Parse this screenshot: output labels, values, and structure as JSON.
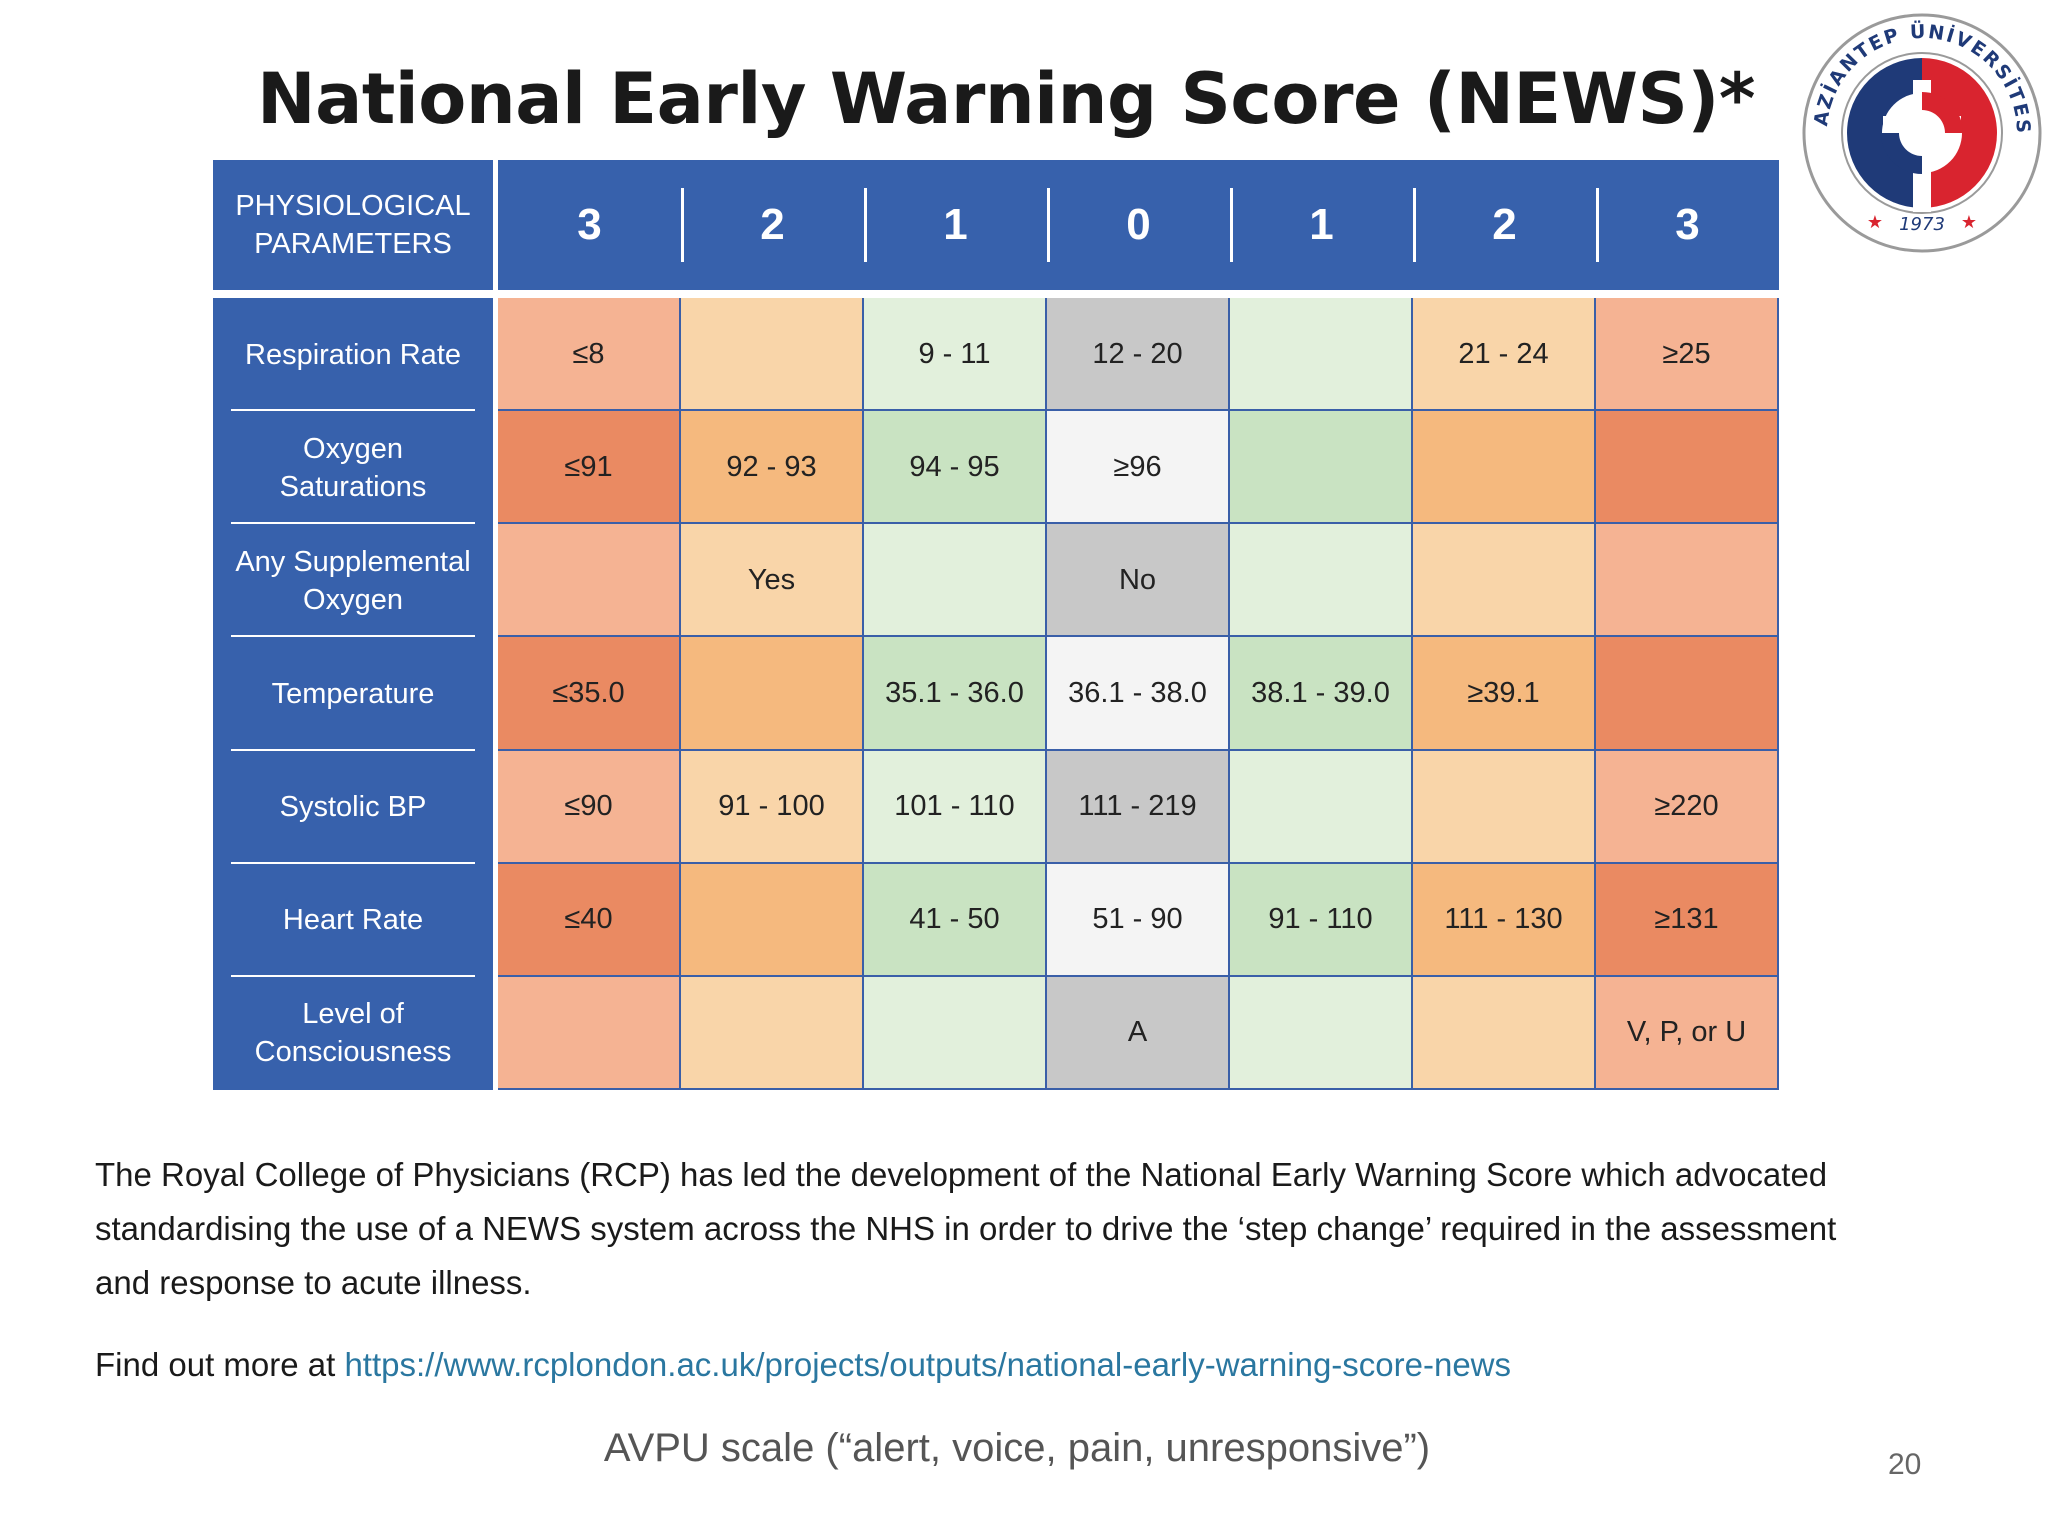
{
  "title": "National Early Warning Score (NEWS)*",
  "logo": {
    "text_top": "GAZİANTEP ÜNİVERSİTESİ",
    "year": "1973",
    "colors": {
      "red": "#d9242f",
      "blue": "#1f3a78"
    }
  },
  "table": {
    "header": {
      "param_label_line1": "PHYSIOLOGICAL",
      "param_label_line2": "PARAMETERS",
      "scores": [
        "3",
        "2",
        "1",
        "0",
        "1",
        "2",
        "3"
      ]
    },
    "rows": [
      {
        "param_line1": "Respiration Rate",
        "param_line2": "",
        "values": [
          "≤8",
          "",
          "9 - 11",
          "12 - 20",
          "",
          "21 - 24",
          "≥25"
        ]
      },
      {
        "param_line1": "Oxygen",
        "param_line2": "Saturations",
        "values": [
          "≤91",
          "92 - 93",
          "94 - 95",
          "≥96",
          "",
          "",
          ""
        ]
      },
      {
        "param_line1": "Any Supplemental",
        "param_line2": "Oxygen",
        "values": [
          "",
          "Yes",
          "",
          "No",
          "",
          "",
          ""
        ]
      },
      {
        "param_line1": "Temperature",
        "param_line2": "",
        "values": [
          "≤35.0",
          "",
          "35.1 - 36.0",
          "36.1 - 38.0",
          "38.1 - 39.0",
          "≥39.1",
          ""
        ]
      },
      {
        "param_line1": "Systolic BP",
        "param_line2": "",
        "values": [
          "≤90",
          "91 - 100",
          "101 - 110",
          "111 - 219",
          "",
          "",
          "≥220"
        ]
      },
      {
        "param_line1": "Heart Rate",
        "param_line2": "",
        "values": [
          "≤40",
          "",
          "41 - 50",
          "51 - 90",
          "91 - 110",
          "111 - 130",
          "≥131"
        ]
      },
      {
        "param_line1": "Level of",
        "param_line2": "Consciousness",
        "values": [
          "",
          "",
          "",
          "A",
          "",
          "",
          "V, P, or U"
        ]
      }
    ],
    "colors": {
      "header_blue": "#3761ac",
      "score3": [
        "#f5b393",
        "#ea8a62",
        "#f5b393",
        "#ea8a62",
        "#f5b393",
        "#ea8a62",
        "#f5b393"
      ],
      "score2": [
        "#f9d5a9",
        "#f5b97e",
        "#f9d5a9",
        "#f5b97e",
        "#f9d5a9",
        "#f5b97e",
        "#f9d5a9"
      ],
      "score1": [
        "#e2f0dc",
        "#c9e3c2",
        "#e2f0dc",
        "#c9e3c2",
        "#e2f0dc",
        "#c9e3c2",
        "#e2f0dc"
      ],
      "score0": [
        "#c8c8c8",
        "#f4f4f4",
        "#c8c8c8",
        "#f4f4f4",
        "#c8c8c8",
        "#f4f4f4",
        "#c8c8c8"
      ]
    }
  },
  "footer": {
    "text": "The Royal College of Physicians (RCP) has led the development of the National Early Warning Score which advocated standardising the use of a NEWS system across the NHS in order to drive the ‘step change’ required in the assessment and response to acute illness.",
    "more_prefix": "Find out more at ",
    "more_link": "https://www.rcplondon.ac.uk/projects/outputs/national-early-warning-score-news"
  },
  "caption": "AVPU scale (“alert, voice, pain, unresponsive”)",
  "page_number": "20"
}
